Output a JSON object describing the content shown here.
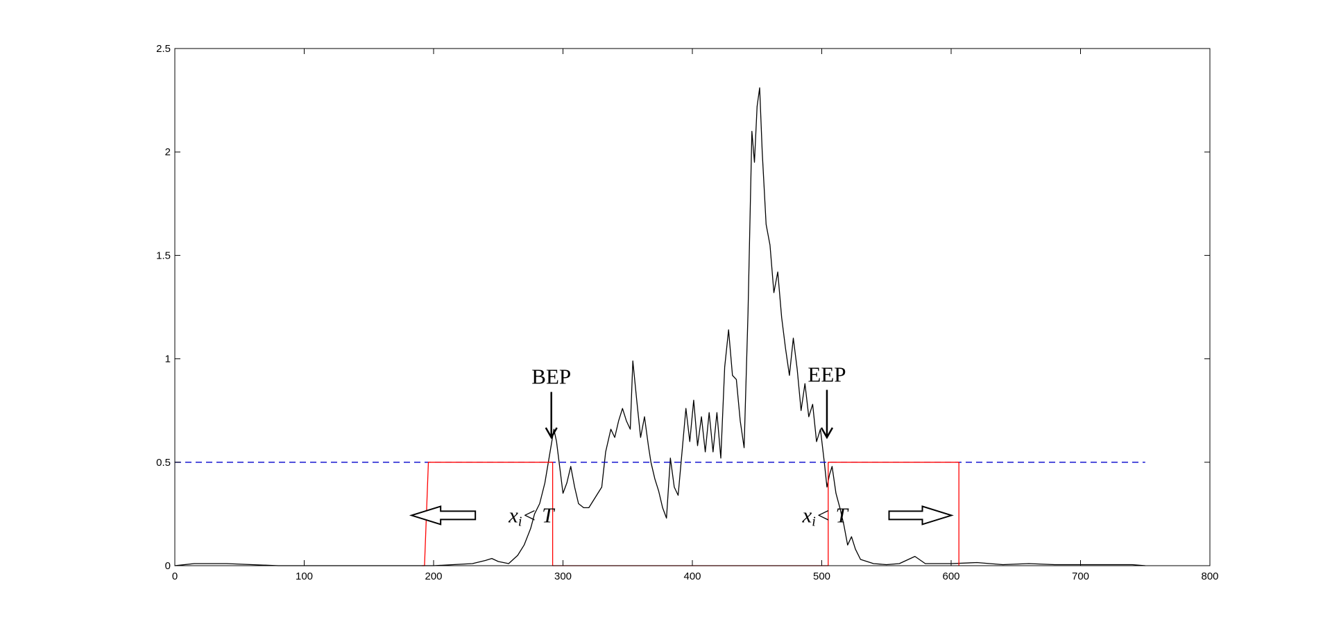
{
  "chart_data": {
    "type": "line",
    "title": "",
    "xlabel": "",
    "ylabel": "",
    "xlim": [
      0,
      800
    ],
    "ylim": [
      0,
      2.5
    ],
    "xticks": [
      0,
      100,
      200,
      300,
      400,
      500,
      600,
      700,
      800
    ],
    "yticks": [
      0,
      0.5,
      1,
      1.5,
      2,
      2.5
    ],
    "xtick_labels": [
      "0",
      "100",
      "200",
      "300",
      "400",
      "500",
      "600",
      "700",
      "800"
    ],
    "ytick_labels": [
      "0",
      "0.5",
      "1",
      "1.5",
      "2",
      "2.5"
    ],
    "grid": false,
    "colors": {
      "signal": "#000000",
      "threshold": "#0000cc",
      "window": "#ff0000"
    },
    "series": [
      {
        "x": [
          0,
          15,
          40,
          80,
          150,
          200,
          215,
          230,
          240,
          245,
          250,
          258,
          265,
          270,
          275,
          278,
          282,
          286,
          290,
          293,
          295,
          298,
          300,
          303,
          306,
          309,
          312,
          316,
          320,
          325,
          330,
          333,
          337,
          340,
          343,
          346,
          349,
          352,
          354,
          357,
          360,
          363,
          366,
          368,
          371,
          374,
          377,
          380,
          383,
          386,
          389,
          392,
          395,
          398,
          401,
          404,
          407,
          410,
          413,
          416,
          419,
          422,
          425,
          428,
          431,
          434,
          437,
          440,
          443,
          446,
          448,
          450,
          452,
          454,
          457,
          460,
          463,
          466,
          469,
          472,
          475,
          478,
          481,
          484,
          487,
          490,
          493,
          496,
          499,
          502,
          504,
          506,
          508,
          511,
          514,
          517,
          520,
          523,
          526,
          530,
          535,
          540,
          550,
          560,
          572,
          580,
          600,
          620,
          640,
          660,
          680,
          700,
          720,
          740,
          750
        ],
        "y": [
          0.0,
          0.01,
          0.01,
          0.0,
          0.0,
          0.0,
          0.005,
          0.01,
          0.025,
          0.035,
          0.02,
          0.01,
          0.05,
          0.1,
          0.18,
          0.25,
          0.3,
          0.4,
          0.55,
          0.66,
          0.6,
          0.45,
          0.35,
          0.4,
          0.48,
          0.38,
          0.3,
          0.28,
          0.28,
          0.33,
          0.38,
          0.55,
          0.66,
          0.62,
          0.7,
          0.76,
          0.7,
          0.66,
          0.99,
          0.8,
          0.62,
          0.72,
          0.58,
          0.5,
          0.42,
          0.36,
          0.28,
          0.23,
          0.52,
          0.38,
          0.34,
          0.55,
          0.76,
          0.6,
          0.8,
          0.58,
          0.72,
          0.55,
          0.74,
          0.55,
          0.74,
          0.52,
          0.96,
          1.14,
          0.92,
          0.9,
          0.7,
          0.57,
          1.22,
          2.1,
          1.95,
          2.22,
          2.31,
          2.0,
          1.65,
          1.55,
          1.32,
          1.42,
          1.2,
          1.05,
          0.92,
          1.1,
          0.95,
          0.75,
          0.88,
          0.72,
          0.78,
          0.6,
          0.66,
          0.5,
          0.38,
          0.44,
          0.48,
          0.35,
          0.28,
          0.2,
          0.1,
          0.14,
          0.08,
          0.03,
          0.02,
          0.01,
          0.005,
          0.01,
          0.045,
          0.01,
          0.01,
          0.015,
          0.005,
          0.01,
          0.005,
          0.005,
          0.005,
          0.005,
          0.0
        ]
      },
      {
        "x": [
          0,
          750
        ],
        "y": [
          0.5,
          0.5
        ]
      },
      {
        "x": [
          191,
          193,
          196,
          196,
          292,
          292,
          505,
          505,
          604,
          606,
          606
        ],
        "y": [
          0,
          0,
          0.5,
          0.5,
          0.5,
          0,
          0,
          0.5,
          0.5,
          0.5,
          0
        ]
      }
    ],
    "annotations": [
      {
        "text": "BEP",
        "x": 291,
        "y": 0.88,
        "arrow_to": [
          291,
          0.62
        ]
      },
      {
        "text": "EEP",
        "x": 504,
        "y": 0.89,
        "arrow_to": [
          504,
          0.62
        ]
      },
      {
        "text_main": "x",
        "text_sub": "i",
        "text_rest": "< T",
        "x": 258,
        "y": 0.25,
        "arrow": "left"
      },
      {
        "text_main": "x",
        "text_sub": "i",
        "text_rest": "< T",
        "x": 485,
        "y": 0.25,
        "arrow": "right"
      }
    ]
  }
}
